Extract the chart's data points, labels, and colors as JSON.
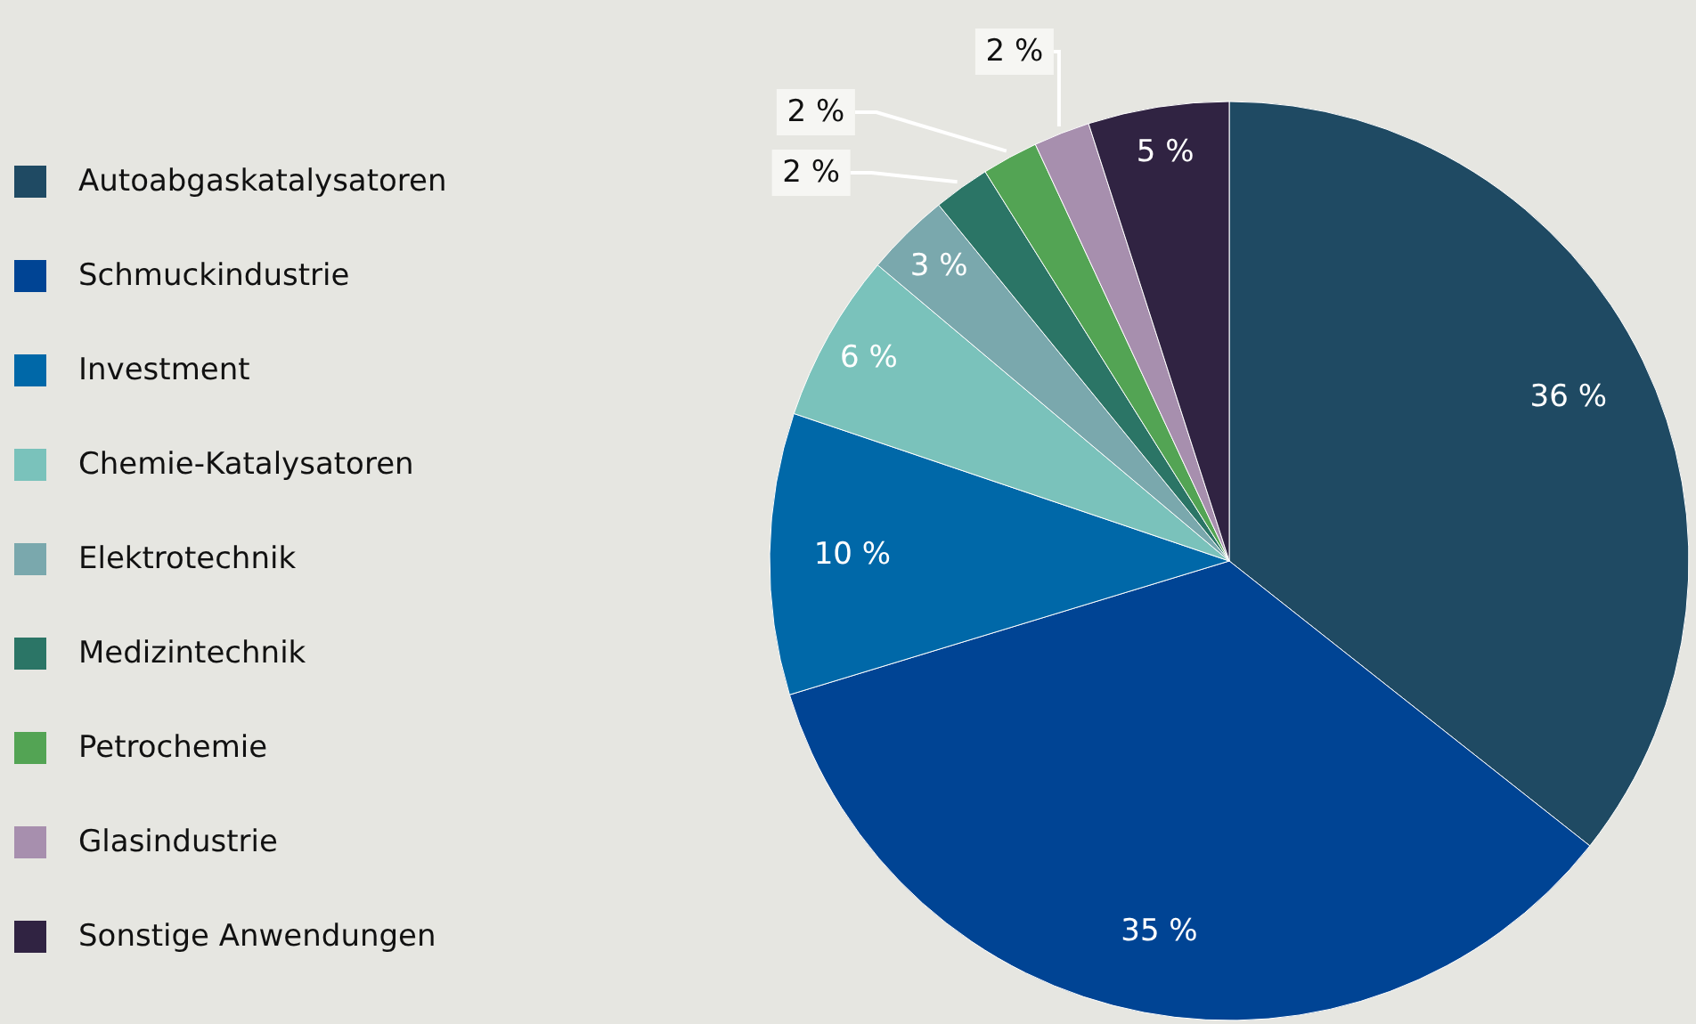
{
  "chart_data": {
    "type": "pie",
    "categories": [
      "Autoabgaskatalysatoren",
      "Schmuckindustrie",
      "Investment",
      "Chemie-Katalysatoren",
      "Elektrotechnik",
      "Medizintechnik",
      "Petrochemie",
      "Glasindustrie",
      "Sonstige Anwendungen"
    ],
    "values": [
      36,
      35,
      10,
      6,
      3,
      2,
      2,
      2,
      5
    ],
    "colors": [
      "#1f4a63",
      "#004494",
      "#0068a8",
      "#7ac2bb",
      "#7aa8ad",
      "#2b7566",
      "#53a454",
      "#a78fae",
      "#302342"
    ],
    "value_labels": [
      "36 %",
      "35 %",
      "10 %",
      "6 %",
      "3 %",
      "2 %",
      "2 %",
      "2 %",
      "5 %"
    ],
    "legend": "left"
  }
}
